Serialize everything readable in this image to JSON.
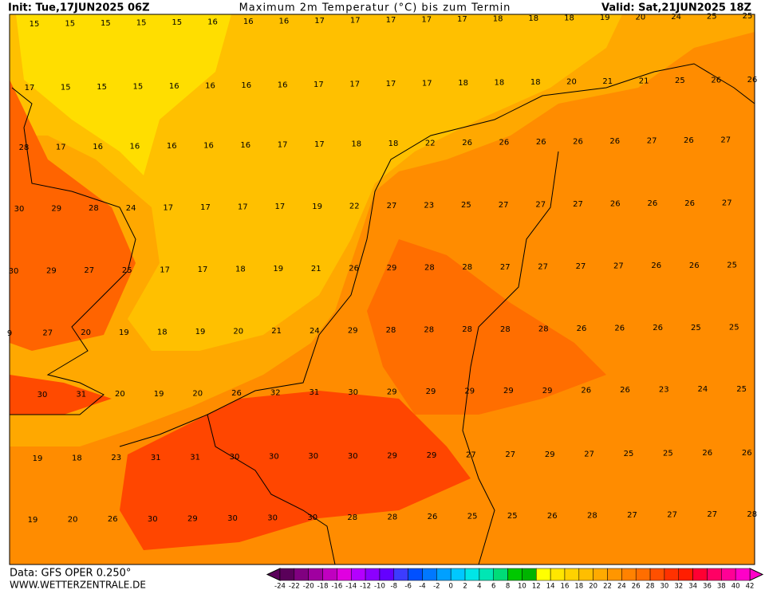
{
  "header": {
    "init": "Init: Tue,17JUN2025 06Z",
    "title": "Maximum 2m Temperatur (°C) bis zum Termin",
    "valid": "Valid: Sat,21JUN2025 18Z"
  },
  "footer": {
    "data": "Data: GFS OPER 0.250°",
    "site": "WWW.WETTERZENTRALE.DE"
  },
  "colorbar": {
    "labels": [
      -24,
      -22,
      -20,
      -18,
      -16,
      -14,
      -12,
      -10,
      -8,
      -6,
      -4,
      -2,
      0,
      2,
      4,
      6,
      8,
      10,
      12,
      14,
      16,
      18,
      20,
      22,
      24,
      26,
      28,
      30,
      32,
      34,
      36,
      38,
      40,
      42
    ],
    "colors": [
      "#5a005a",
      "#800080",
      "#a000a0",
      "#c000c0",
      "#e000e0",
      "#b400ff",
      "#8c00ff",
      "#6400ff",
      "#3c3cff",
      "#0050ff",
      "#0078ff",
      "#00a0ff",
      "#00c8ff",
      "#00e6e6",
      "#00e6b4",
      "#00dc78",
      "#00c800",
      "#00b400",
      "#ffff00",
      "#ffe600",
      "#ffd200",
      "#ffbe00",
      "#ffaa00",
      "#ff9600",
      "#ff8200",
      "#ff6e00",
      "#ff5000",
      "#ff3200",
      "#ff1e00",
      "#ff0032",
      "#ff0064",
      "#ff0096",
      "#ff00c8"
    ]
  },
  "rows": [
    [
      15,
      15,
      15,
      15,
      15,
      16,
      16,
      16,
      17,
      17,
      17,
      17,
      17,
      18,
      18,
      18,
      19,
      20,
      24,
      25,
      25
    ],
    [
      17,
      15,
      15,
      15,
      16,
      16,
      16,
      16,
      17,
      17,
      17,
      17,
      18,
      18,
      18,
      20,
      21,
      21,
      25,
      26,
      26
    ],
    [
      28,
      17,
      16,
      16,
      16,
      16,
      16,
      17,
      17,
      18,
      18,
      22,
      26,
      26,
      26,
      26,
      26,
      27,
      26,
      27
    ],
    [
      30,
      29,
      28,
      24,
      17,
      17,
      17,
      17,
      19,
      22,
      27,
      23,
      25,
      27,
      27,
      27,
      26,
      26,
      26,
      27
    ],
    [
      30,
      29,
      27,
      25,
      17,
      17,
      18,
      19,
      21,
      26,
      29,
      28,
      28,
      27,
      27,
      27,
      27,
      26,
      26,
      25
    ],
    [
      9,
      27,
      20,
      19,
      18,
      19,
      20,
      21,
      24,
      29,
      28,
      28,
      28,
      28,
      28,
      26,
      26,
      26,
      25,
      25
    ],
    [
      30,
      31,
      20,
      19,
      20,
      26,
      32,
      31,
      30,
      29,
      29,
      29,
      29,
      29,
      26,
      26,
      23,
      24,
      25
    ],
    [
      19,
      18,
      23,
      31,
      31,
      30,
      30,
      30,
      30,
      29,
      29,
      27,
      27,
      29,
      27,
      25,
      25,
      26,
      26
    ],
    [
      19,
      20,
      26,
      30,
      29,
      30,
      30,
      30,
      28,
      28,
      26,
      25,
      25,
      26,
      28,
      27,
      27,
      27,
      28
    ]
  ]
}
